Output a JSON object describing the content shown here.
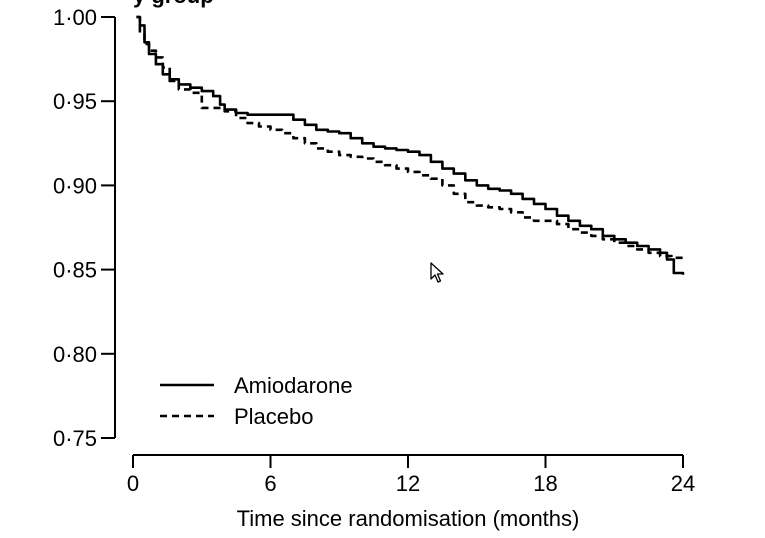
{
  "chart_data": {
    "type": "line",
    "title_fragment": "y group",
    "xlabel": "Time since randomisation (months)",
    "ylabel": "",
    "xlim": [
      0,
      24
    ],
    "ylim": [
      0.75,
      1.0
    ],
    "x_ticks": [
      0,
      6,
      12,
      18,
      24
    ],
    "x_tick_labels": [
      "0",
      "6",
      "12",
      "18",
      "24"
    ],
    "y_ticks": [
      0.75,
      0.8,
      0.85,
      0.9,
      0.95,
      1.0
    ],
    "y_tick_labels": [
      "0·75",
      "0·80",
      "0·85",
      "0·90",
      "0·95",
      "1·00"
    ],
    "grid": false,
    "legend_position": "bottom-left",
    "series": [
      {
        "name": "Amiodarone",
        "style": "solid",
        "x": [
          0.15,
          0.3,
          0.5,
          0.7,
          1.0,
          1.3,
          1.6,
          2.0,
          2.5,
          3.0,
          3.5,
          3.8,
          4.0,
          4.5,
          5.0,
          5.5,
          6.0,
          6.5,
          7.0,
          7.5,
          8.0,
          8.5,
          9.0,
          9.5,
          10.0,
          10.5,
          11.0,
          11.5,
          12.0,
          12.5,
          13.0,
          13.5,
          14.0,
          14.5,
          15.0,
          15.5,
          16.0,
          16.5,
          17.0,
          17.5,
          18.0,
          18.5,
          19.0,
          19.5,
          20.0,
          20.5,
          21.0,
          21.5,
          22.0,
          22.5,
          23.0,
          23.3,
          23.6,
          24.0
        ],
        "y": [
          1.0,
          0.995,
          0.985,
          0.978,
          0.972,
          0.966,
          0.963,
          0.96,
          0.958,
          0.956,
          0.953,
          0.948,
          0.945,
          0.943,
          0.942,
          0.942,
          0.942,
          0.942,
          0.939,
          0.936,
          0.933,
          0.932,
          0.931,
          0.928,
          0.925,
          0.923,
          0.922,
          0.921,
          0.92,
          0.918,
          0.914,
          0.91,
          0.907,
          0.903,
          0.9,
          0.898,
          0.897,
          0.895,
          0.892,
          0.889,
          0.886,
          0.882,
          0.879,
          0.876,
          0.874,
          0.87,
          0.868,
          0.866,
          0.864,
          0.862,
          0.86,
          0.856,
          0.848,
          0.847
        ]
      },
      {
        "name": "Placebo",
        "style": "dashed",
        "x": [
          0.15,
          0.3,
          0.5,
          0.7,
          1.0,
          1.3,
          1.6,
          2.0,
          2.5,
          3.0,
          3.5,
          4.0,
          4.5,
          5.0,
          5.5,
          6.0,
          6.5,
          7.0,
          7.5,
          8.0,
          8.5,
          9.0,
          9.5,
          10.0,
          10.5,
          11.0,
          11.5,
          12.0,
          12.5,
          13.0,
          13.5,
          14.0,
          14.5,
          15.0,
          15.5,
          16.0,
          16.5,
          17.0,
          17.5,
          18.0,
          18.5,
          19.0,
          19.5,
          20.0,
          20.5,
          21.0,
          21.5,
          22.0,
          22.5,
          23.0,
          23.5,
          24.0
        ],
        "y": [
          1.0,
          0.99,
          0.984,
          0.98,
          0.976,
          0.97,
          0.962,
          0.957,
          0.955,
          0.946,
          0.946,
          0.944,
          0.94,
          0.937,
          0.935,
          0.933,
          0.931,
          0.928,
          0.925,
          0.922,
          0.92,
          0.918,
          0.917,
          0.916,
          0.914,
          0.912,
          0.91,
          0.908,
          0.906,
          0.904,
          0.9,
          0.895,
          0.89,
          0.888,
          0.887,
          0.886,
          0.884,
          0.881,
          0.879,
          0.879,
          0.877,
          0.874,
          0.872,
          0.87,
          0.868,
          0.866,
          0.864,
          0.862,
          0.86,
          0.858,
          0.857,
          0.856
        ]
      }
    ]
  }
}
